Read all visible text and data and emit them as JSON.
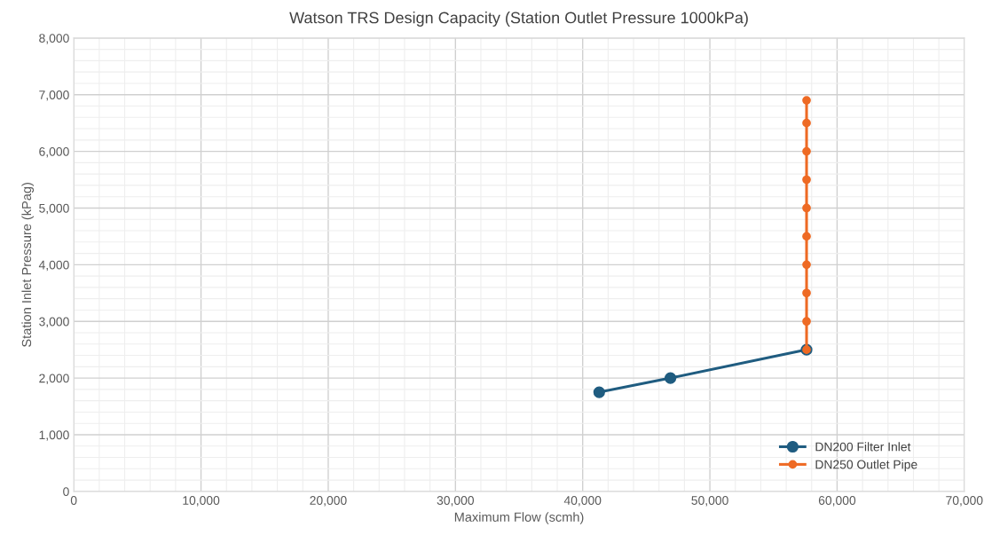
{
  "chart_data": {
    "type": "line",
    "title": "Watson TRS Design Capacity (Station Outlet Pressure 1000kPa)",
    "xlabel": "Maximum Flow (scmh)",
    "ylabel": "Station Inlet Pressure (kPag)",
    "series": [
      {
        "name": "DN200 Filter Inlet",
        "color": "#1f5c80",
        "x": [
          41300,
          46900,
          57600
        ],
        "values": [
          1750,
          2000,
          2500
        ]
      },
      {
        "name": "DN250 Outlet Pipe",
        "color": "#ee6a24",
        "x": [
          57600,
          57600,
          57600,
          57600,
          57600,
          57600,
          57600,
          57600,
          57600,
          57600
        ],
        "values": [
          2500,
          3000,
          3500,
          4000,
          4500,
          5000,
          5500,
          6000,
          6500,
          6900
        ]
      }
    ],
    "xlim": [
      0,
      70000
    ],
    "ylim": [
      0,
      8000
    ],
    "xticks": [
      {
        "value": 0,
        "label": "0"
      },
      {
        "value": 10000,
        "label": "10,000"
      },
      {
        "value": 20000,
        "label": "20,000"
      },
      {
        "value": 30000,
        "label": "30,000"
      },
      {
        "value": 40000,
        "label": "40,000"
      },
      {
        "value": 50000,
        "label": "50,000"
      },
      {
        "value": 60000,
        "label": "60,000"
      },
      {
        "value": 70000,
        "label": "70,000"
      }
    ],
    "yticks": [
      {
        "value": 0,
        "label": "0"
      },
      {
        "value": 1000,
        "label": "1,000"
      },
      {
        "value": 2000,
        "label": "2,000"
      },
      {
        "value": 3000,
        "label": "3,000"
      },
      {
        "value": 4000,
        "label": "4,000"
      },
      {
        "value": 5000,
        "label": "5,000"
      },
      {
        "value": 6000,
        "label": "6,000"
      },
      {
        "value": 7000,
        "label": "7,000"
      },
      {
        "value": 8000,
        "label": "8,000"
      }
    ],
    "grid": true,
    "legend": "bottom right",
    "marker": "circle",
    "line_style": "solid"
  }
}
